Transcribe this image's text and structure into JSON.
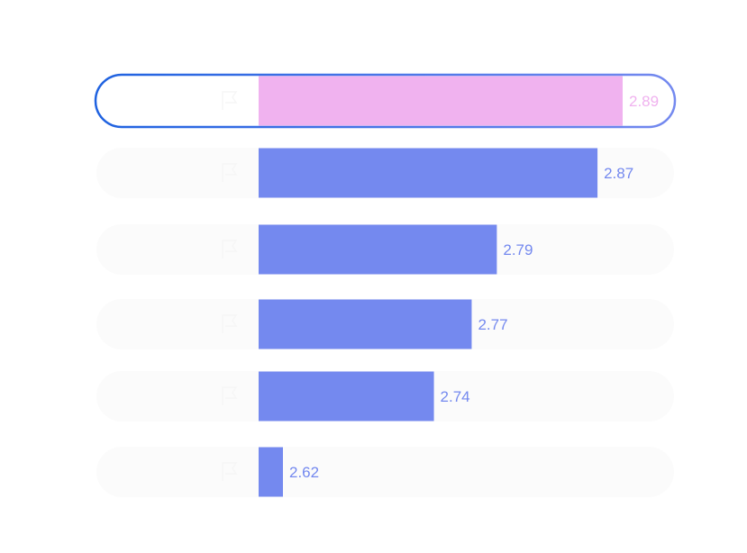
{
  "chart_data": {
    "type": "bar",
    "orientation": "horizontal",
    "title": "",
    "xlabel": "",
    "ylabel": "",
    "categories": [
      "",
      "",
      "",
      "",
      "",
      ""
    ],
    "values": [
      2.89,
      2.87,
      2.79,
      2.77,
      2.74,
      2.62
    ],
    "value_labels": [
      "2.89",
      "2.87",
      "2.79",
      "2.77",
      "2.74",
      "2.62"
    ],
    "xlim": [
      2.6,
      2.9
    ],
    "grid": false,
    "legend": "none",
    "highlighted_index": 0
  },
  "colors": {
    "bar": "#7489ef",
    "highlight_bar": "#f0b2ef",
    "label": "#7489ef",
    "highlight_label": "#f0b2ef",
    "highlight_outline_start": "#1f62e0",
    "highlight_outline_end": "#7489ef",
    "row_background": "#fbfbfb",
    "row_text": "#ffffff"
  },
  "icons": [
    "flag-icon",
    "flag-icon",
    "flag-icon",
    "flag-icon",
    "flag-icon",
    "flag-icon"
  ]
}
